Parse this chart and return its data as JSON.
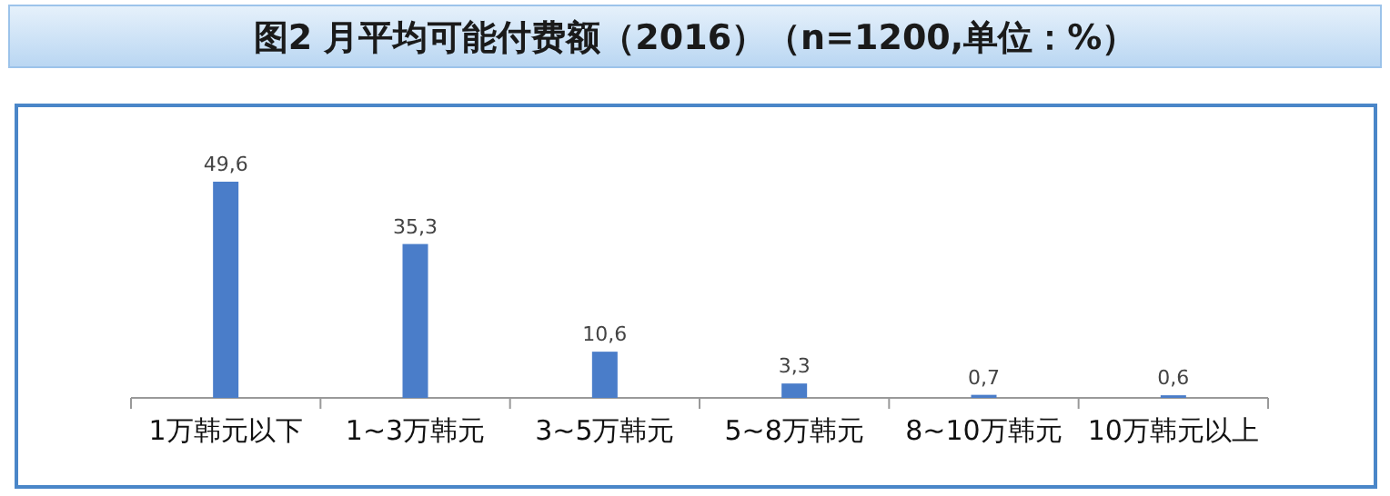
{
  "chart_data": {
    "type": "bar",
    "title": "图2 月平均可能付费额（2016）（n=1200,单位：%）",
    "categories": [
      "1万韩元以下",
      "1~3万韩元",
      "3~5万韩元",
      "5~8万韩元",
      "8~10万韩元",
      "10万韩元以上"
    ],
    "values": [
      49.6,
      35.3,
      10.6,
      3.3,
      0.7,
      0.6
    ],
    "value_labels": [
      "49,6",
      "35,3",
      "10,6",
      "3,3",
      "0,7",
      "0,6"
    ],
    "color": "#4a7dc9"
  }
}
